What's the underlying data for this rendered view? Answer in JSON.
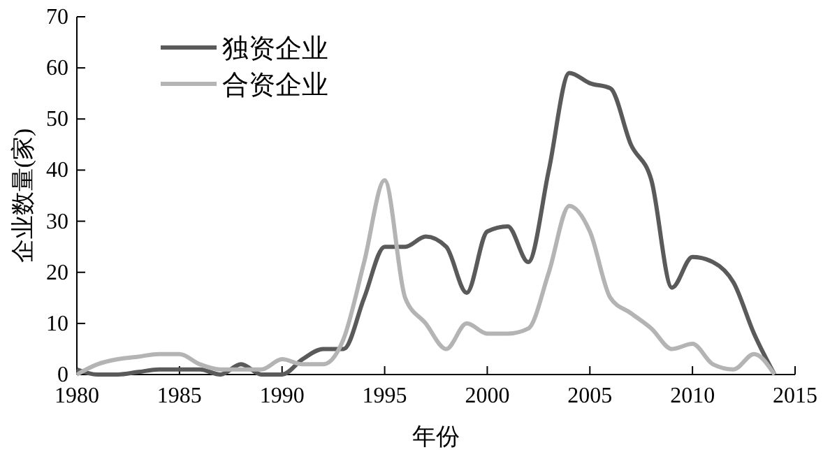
{
  "chart_data": {
    "type": "line",
    "xlabel": "年份",
    "ylabel": "企业数量(家)",
    "x": [
      1980,
      1981,
      1982,
      1983,
      1984,
      1985,
      1986,
      1987,
      1988,
      1989,
      1990,
      1991,
      1992,
      1993,
      1994,
      1995,
      1996,
      1997,
      1998,
      1999,
      2000,
      2001,
      2002,
      2003,
      2004,
      2005,
      2006,
      2007,
      2008,
      2009,
      2010,
      2011,
      2012,
      2013,
      2014
    ],
    "series": [
      {
        "name": "独资企业",
        "color": "#5a5a5a",
        "values": [
          1,
          0,
          0,
          0.5,
          1,
          1,
          1,
          0,
          2,
          0,
          0,
          3,
          5,
          5,
          15,
          25,
          25,
          27,
          25,
          16,
          28,
          29,
          22,
          40,
          59,
          57,
          56,
          45,
          38,
          17,
          23,
          22,
          18,
          8,
          0
        ]
      },
      {
        "name": "合资企业",
        "color": "#b4b4b4",
        "values": [
          0,
          2,
          3,
          3.5,
          4,
          4,
          2,
          1,
          1,
          1,
          3,
          2,
          2,
          7,
          22,
          38,
          15,
          10,
          5,
          10,
          8,
          8,
          9,
          20,
          33,
          28,
          15,
          12,
          9,
          5,
          6,
          2,
          1,
          4,
          0
        ]
      }
    ],
    "xlim": [
      1980,
      2015
    ],
    "xticks": [
      1980,
      1985,
      1990,
      1995,
      2000,
      2005,
      2010,
      2015
    ],
    "ylim": [
      0,
      70
    ],
    "yticks": [
      0,
      10,
      20,
      30,
      40,
      50,
      60,
      70
    ],
    "grid": false,
    "legend": "top left",
    "marker": "none",
    "line_style": "solid"
  }
}
